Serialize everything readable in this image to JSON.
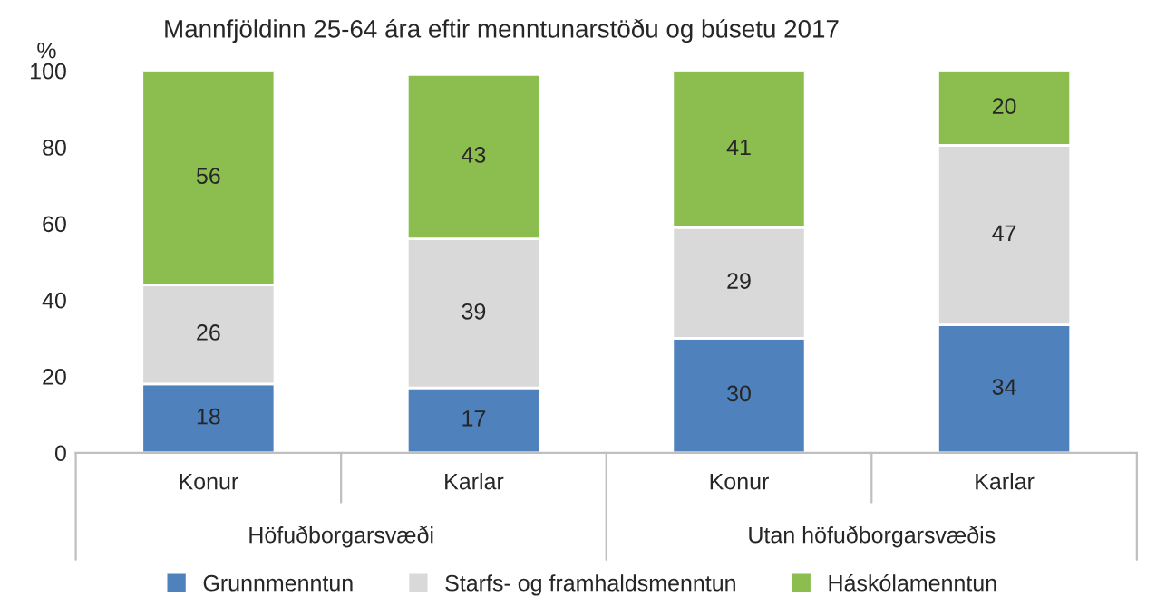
{
  "chart_data": {
    "type": "bar",
    "title": "Mannfjöldinn 25-64 ára eftir menntunarstöðu og búsetu 2017",
    "ylabel": "%",
    "categories": [
      "Konur",
      "Karlar",
      "Konur",
      "Karlar"
    ],
    "stacked": true,
    "legend": "bottom",
    "grid": false,
    "ylim": [
      0,
      100
    ],
    "yticks": [
      0,
      20,
      40,
      60,
      80,
      100
    ],
    "annotations": [
      "Höfuðborgarsvæði",
      "Utan höfuðborgarsvæðis"
    ],
    "series": [
      {
        "name": "Grunnmenntun",
        "color": "#4f81bd",
        "values": [
          18,
          17,
          30,
          33.5
        ],
        "value_labels": [
          "18",
          "17",
          "30",
          "34"
        ]
      },
      {
        "name": "Starfs- og framhaldsmenntun",
        "color": "#d9d9d9",
        "values": [
          26,
          39,
          29,
          47
        ],
        "value_labels": [
          "26",
          "39",
          "29",
          "47"
        ]
      },
      {
        "name": "Háskólamenntun",
        "color": "#8cbd4f",
        "values": [
          56,
          43,
          41,
          19.5
        ],
        "value_labels": [
          "56",
          "43",
          "41",
          "20"
        ]
      }
    ]
  }
}
